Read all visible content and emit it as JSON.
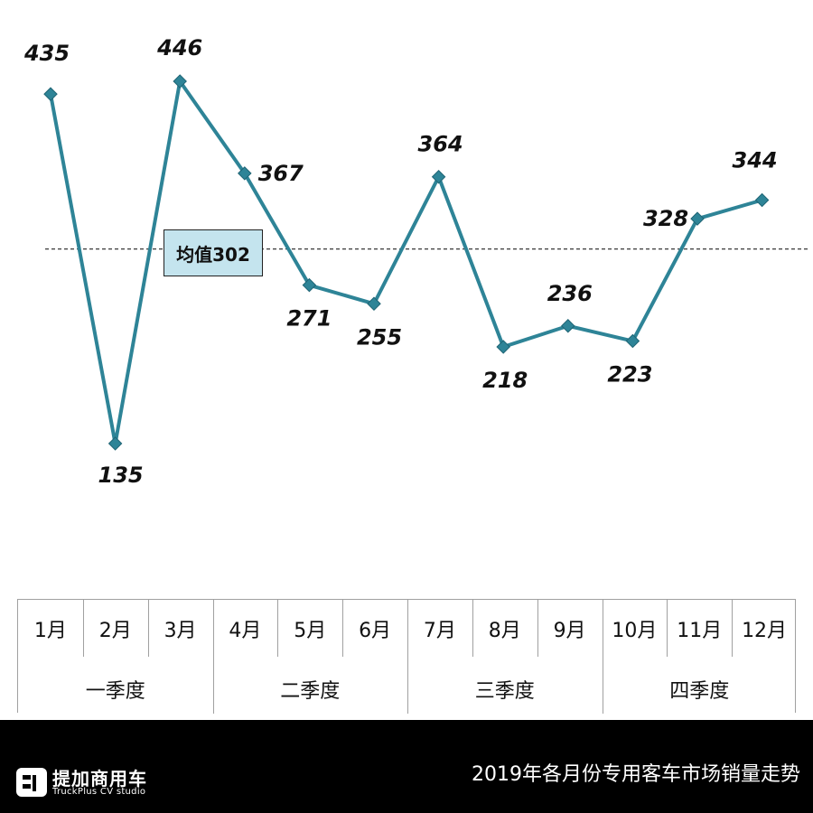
{
  "chart_data": {
    "type": "line",
    "categories": [
      "1月",
      "2月",
      "3月",
      "4月",
      "5月",
      "6月",
      "7月",
      "8月",
      "9月",
      "10月",
      "11月",
      "12月"
    ],
    "quarters": [
      "一季度",
      "二季度",
      "三季度",
      "四季度"
    ],
    "values": [
      435,
      135,
      446,
      367,
      271,
      255,
      364,
      218,
      236,
      223,
      328,
      344
    ],
    "average": 302,
    "average_label": "均值302",
    "title": "2019年各月份专用客车市场销量走势",
    "line_color": "#2e8497",
    "marker_color": "#2e8497",
    "grid": false
  },
  "footer": {
    "title": "2019年各月份专用客车市场销量走势",
    "logo_cn": "提加商用车",
    "logo_en": "TruckPlus CV studio"
  }
}
